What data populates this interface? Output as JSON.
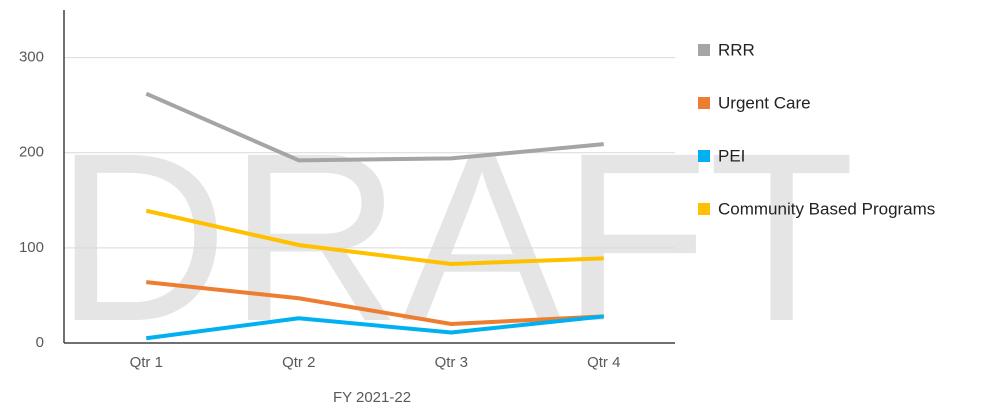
{
  "chart_data": {
    "type": "line",
    "watermark": "DRAFT",
    "x_label": "FY 2021-22",
    "categories": [
      "Qtr 1",
      "Qtr 2",
      "Qtr 3",
      "Qtr 4"
    ],
    "series": [
      {
        "name": "RRR",
        "color": "#a5a5a5",
        "values": [
          262,
          192,
          194,
          209
        ]
      },
      {
        "name": "Urgent Care",
        "color": "#ed7d31",
        "values": [
          64,
          47,
          20,
          28
        ]
      },
      {
        "name": "PEI",
        "color": "#00b0f0",
        "values": [
          5,
          26,
          11,
          28
        ]
      },
      {
        "name": "Community Based Programs",
        "color": "#ffc000",
        "values": [
          139,
          103,
          83,
          89
        ]
      }
    ],
    "ylim": [
      0,
      350
    ],
    "yticks": [
      0,
      100,
      200,
      300
    ],
    "grid": true,
    "legend": "right"
  }
}
